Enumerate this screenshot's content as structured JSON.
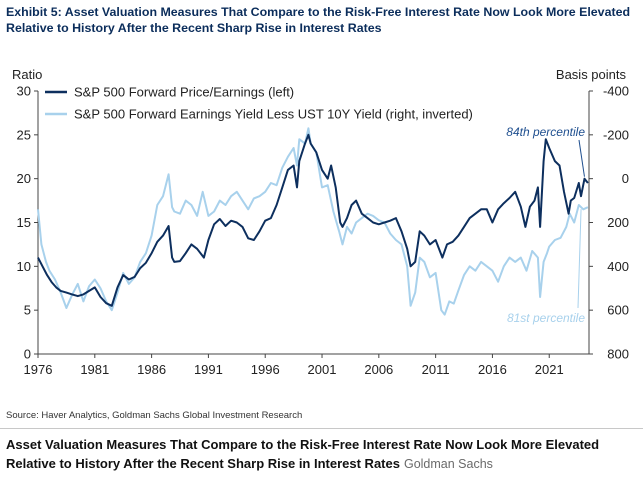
{
  "exhibit": {
    "title_line1": "Exhibit 5: Asset Valuation Measures That Compare to the Risk-Free Interest Rate Now Look More Elevated",
    "title_line2": "Relative to History After the Recent Sharp Rise in Interest Rates"
  },
  "source": "Source: Haver Analytics, Goldman Sachs Global Investment Research",
  "caption": {
    "line1": "Asset Valuation Measures That Compare to the Risk-Free Interest Rate Now Look More Elevated",
    "line2": "Relative to History After the Recent Sharp Rise in Interest Rates",
    "publisher": "Goldman Sachs"
  },
  "colors": {
    "pe_series": "#0d2f5e",
    "yield_series": "#a8d1ec",
    "title": "#0b2d5b",
    "annotation_pe": "#1f4f8f",
    "annotation_yield": "#a8d1ec"
  },
  "chart_data": {
    "type": "line",
    "title": "Asset Valuation Measures That Compare to the Risk-Free Interest Rate Now Look More Elevated Relative to History After the Recent Sharp Rise in Interest Rates",
    "xlabel": "",
    "ylabel_left": "Ratio",
    "ylabel_right": "Basis points",
    "xlim": [
      1976,
      2024.5
    ],
    "ylim_left": [
      0,
      30
    ],
    "ylim_right": [
      800,
      -400
    ],
    "right_axis_inverted": true,
    "x_ticks": [
      1976,
      1981,
      1986,
      1991,
      1996,
      2001,
      2006,
      2011,
      2016,
      2021
    ],
    "y_ticks_left": [
      0,
      5,
      10,
      15,
      20,
      25,
      30
    ],
    "y_ticks_right": [
      -400,
      -200,
      0,
      200,
      400,
      600,
      800
    ],
    "legend_position": "top-left",
    "series": [
      {
        "name": "S&P 500 Forward Price/Earnings (left)",
        "axis": "left",
        "points": [
          [
            1976.0,
            11.0
          ],
          [
            1976.4,
            10.0
          ],
          [
            1976.8,
            9.0
          ],
          [
            1977.2,
            8.2
          ],
          [
            1977.6,
            7.6
          ],
          [
            1978.0,
            7.2
          ],
          [
            1978.5,
            7.0
          ],
          [
            1979.0,
            6.8
          ],
          [
            1979.5,
            6.6
          ],
          [
            1980.0,
            6.8
          ],
          [
            1980.5,
            7.2
          ],
          [
            1981.0,
            7.6
          ],
          [
            1981.5,
            6.5
          ],
          [
            1982.0,
            5.8
          ],
          [
            1982.5,
            5.5
          ],
          [
            1983.0,
            7.6
          ],
          [
            1983.5,
            9.0
          ],
          [
            1984.0,
            8.5
          ],
          [
            1984.5,
            8.8
          ],
          [
            1985.0,
            9.8
          ],
          [
            1985.5,
            10.4
          ],
          [
            1986.0,
            11.5
          ],
          [
            1986.5,
            12.8
          ],
          [
            1987.0,
            13.5
          ],
          [
            1987.5,
            14.6
          ],
          [
            1987.8,
            11.0
          ],
          [
            1988.0,
            10.5
          ],
          [
            1988.5,
            10.6
          ],
          [
            1989.0,
            11.5
          ],
          [
            1989.5,
            12.5
          ],
          [
            1990.0,
            12.0
          ],
          [
            1990.6,
            11.0
          ],
          [
            1991.0,
            13.0
          ],
          [
            1991.5,
            14.8
          ],
          [
            1992.0,
            15.4
          ],
          [
            1992.5,
            14.6
          ],
          [
            1993.0,
            15.2
          ],
          [
            1993.5,
            15.0
          ],
          [
            1994.0,
            14.5
          ],
          [
            1994.5,
            13.2
          ],
          [
            1995.0,
            13.0
          ],
          [
            1995.5,
            14.0
          ],
          [
            1996.0,
            15.2
          ],
          [
            1996.5,
            15.5
          ],
          [
            1997.0,
            17.0
          ],
          [
            1997.5,
            19.0
          ],
          [
            1998.0,
            21.0
          ],
          [
            1998.5,
            21.5
          ],
          [
            1998.8,
            19.0
          ],
          [
            1999.0,
            22.0
          ],
          [
            1999.5,
            24.0
          ],
          [
            1999.8,
            25.0
          ],
          [
            2000.0,
            24.0
          ],
          [
            2000.5,
            23.0
          ],
          [
            2001.0,
            21.0
          ],
          [
            2001.5,
            20.0
          ],
          [
            2001.8,
            21.5
          ],
          [
            2002.2,
            19.0
          ],
          [
            2002.6,
            15.0
          ],
          [
            2002.8,
            14.5
          ],
          [
            2003.2,
            15.5
          ],
          [
            2003.6,
            17.0
          ],
          [
            2004.0,
            17.5
          ],
          [
            2004.5,
            16.0
          ],
          [
            2005.0,
            15.5
          ],
          [
            2005.5,
            15.0
          ],
          [
            2006.0,
            14.8
          ],
          [
            2006.5,
            15.0
          ],
          [
            2007.0,
            15.2
          ],
          [
            2007.5,
            15.5
          ],
          [
            2008.0,
            14.0
          ],
          [
            2008.5,
            12.0
          ],
          [
            2008.8,
            10.0
          ],
          [
            2009.2,
            10.5
          ],
          [
            2009.6,
            14.0
          ],
          [
            2010.0,
            13.5
          ],
          [
            2010.5,
            12.5
          ],
          [
            2011.0,
            13.0
          ],
          [
            2011.6,
            11.0
          ],
          [
            2012.0,
            12.5
          ],
          [
            2012.5,
            12.8
          ],
          [
            2013.0,
            13.5
          ],
          [
            2013.5,
            14.5
          ],
          [
            2014.0,
            15.5
          ],
          [
            2014.5,
            16.0
          ],
          [
            2015.0,
            16.5
          ],
          [
            2015.5,
            16.5
          ],
          [
            2016.0,
            15.0
          ],
          [
            2016.5,
            16.5
          ],
          [
            2017.0,
            17.2
          ],
          [
            2017.5,
            17.8
          ],
          [
            2018.0,
            18.5
          ],
          [
            2018.5,
            16.8
          ],
          [
            2018.9,
            14.5
          ],
          [
            2019.3,
            16.8
          ],
          [
            2019.7,
            17.5
          ],
          [
            2020.0,
            19.0
          ],
          [
            2020.2,
            14.5
          ],
          [
            2020.5,
            22.0
          ],
          [
            2020.7,
            24.5
          ],
          [
            2021.0,
            23.5
          ],
          [
            2021.5,
            22.0
          ],
          [
            2021.9,
            21.5
          ],
          [
            2022.3,
            18.5
          ],
          [
            2022.7,
            16.0
          ],
          [
            2022.9,
            17.5
          ],
          [
            2023.2,
            17.8
          ],
          [
            2023.6,
            19.5
          ],
          [
            2023.8,
            18.0
          ],
          [
            2024.1,
            20.0
          ],
          [
            2024.4,
            19.5
          ]
        ]
      },
      {
        "name": "S&P 500 Forward Earnings Yield Less UST 10Y Yield (right, inverted)",
        "axis": "right",
        "points": [
          [
            1976.0,
            140
          ],
          [
            1976.3,
            300
          ],
          [
            1976.7,
            380
          ],
          [
            1977.0,
            420
          ],
          [
            1977.5,
            460
          ],
          [
            1978.0,
            520
          ],
          [
            1978.5,
            590
          ],
          [
            1979.0,
            530
          ],
          [
            1979.5,
            480
          ],
          [
            1980.0,
            560
          ],
          [
            1980.5,
            490
          ],
          [
            1981.0,
            460
          ],
          [
            1981.5,
            500
          ],
          [
            1982.0,
            560
          ],
          [
            1982.5,
            600
          ],
          [
            1983.0,
            520
          ],
          [
            1983.5,
            430
          ],
          [
            1984.0,
            480
          ],
          [
            1984.5,
            450
          ],
          [
            1985.0,
            380
          ],
          [
            1985.5,
            340
          ],
          [
            1986.0,
            260
          ],
          [
            1986.5,
            120
          ],
          [
            1987.0,
            80
          ],
          [
            1987.5,
            -20
          ],
          [
            1987.8,
            130
          ],
          [
            1988.0,
            150
          ],
          [
            1988.5,
            160
          ],
          [
            1989.0,
            100
          ],
          [
            1989.5,
            120
          ],
          [
            1990.0,
            170
          ],
          [
            1990.5,
            60
          ],
          [
            1991.0,
            170
          ],
          [
            1991.5,
            150
          ],
          [
            1992.0,
            100
          ],
          [
            1992.5,
            120
          ],
          [
            1993.0,
            80
          ],
          [
            1993.5,
            60
          ],
          [
            1994.0,
            100
          ],
          [
            1994.5,
            140
          ],
          [
            1995.0,
            90
          ],
          [
            1995.5,
            80
          ],
          [
            1996.0,
            60
          ],
          [
            1996.5,
            20
          ],
          [
            1997.0,
            30
          ],
          [
            1997.5,
            -50
          ],
          [
            1998.0,
            -100
          ],
          [
            1998.5,
            -140
          ],
          [
            1998.8,
            -60
          ],
          [
            1999.0,
            -180
          ],
          [
            1999.5,
            -160
          ],
          [
            1999.8,
            -230
          ],
          [
            2000.0,
            -160
          ],
          [
            2000.5,
            -120
          ],
          [
            2001.0,
            40
          ],
          [
            2001.5,
            30
          ],
          [
            2002.0,
            150
          ],
          [
            2002.5,
            240
          ],
          [
            2002.8,
            300
          ],
          [
            2003.2,
            220
          ],
          [
            2003.6,
            250
          ],
          [
            2004.0,
            200
          ],
          [
            2004.5,
            180
          ],
          [
            2005.0,
            160
          ],
          [
            2005.5,
            170
          ],
          [
            2006.0,
            190
          ],
          [
            2006.5,
            200
          ],
          [
            2007.0,
            250
          ],
          [
            2007.5,
            280
          ],
          [
            2008.0,
            300
          ],
          [
            2008.5,
            400
          ],
          [
            2008.8,
            580
          ],
          [
            2009.2,
            520
          ],
          [
            2009.6,
            360
          ],
          [
            2010.0,
            380
          ],
          [
            2010.5,
            450
          ],
          [
            2011.0,
            430
          ],
          [
            2011.5,
            600
          ],
          [
            2011.8,
            620
          ],
          [
            2012.2,
            560
          ],
          [
            2012.6,
            570
          ],
          [
            2013.0,
            510
          ],
          [
            2013.5,
            440
          ],
          [
            2014.0,
            400
          ],
          [
            2014.5,
            420
          ],
          [
            2015.0,
            380
          ],
          [
            2015.5,
            400
          ],
          [
            2016.0,
            420
          ],
          [
            2016.5,
            470
          ],
          [
            2017.0,
            400
          ],
          [
            2017.5,
            360
          ],
          [
            2018.0,
            380
          ],
          [
            2018.5,
            360
          ],
          [
            2019.0,
            420
          ],
          [
            2019.5,
            330
          ],
          [
            2020.0,
            360
          ],
          [
            2020.2,
            540
          ],
          [
            2020.5,
            380
          ],
          [
            2020.8,
            340
          ],
          [
            2021.0,
            310
          ],
          [
            2021.5,
            280
          ],
          [
            2022.0,
            270
          ],
          [
            2022.5,
            220
          ],
          [
            2022.8,
            160
          ],
          [
            2023.2,
            200
          ],
          [
            2023.6,
            120
          ],
          [
            2024.0,
            140
          ],
          [
            2024.4,
            130
          ]
        ]
      }
    ],
    "annotations": [
      {
        "text": "84th percentile",
        "series": "S&P 500 Forward Price/Earnings (left)",
        "target": [
          2024.1,
          20.0
        ]
      },
      {
        "text": "81st percentile",
        "series": "S&P 500 Forward Earnings Yield Less UST 10Y Yield (right, inverted)",
        "target": [
          2023.8,
          130
        ]
      }
    ]
  }
}
